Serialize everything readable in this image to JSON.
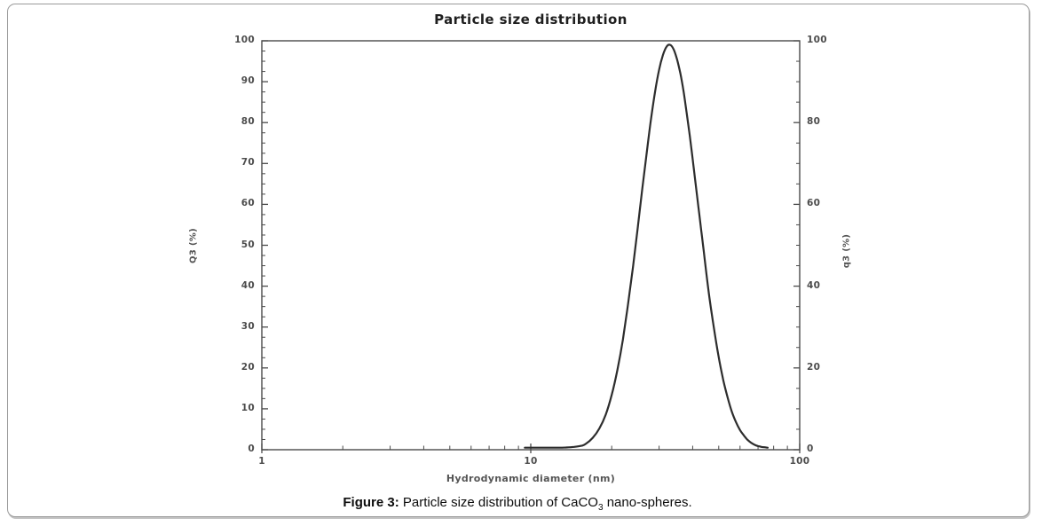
{
  "figure": {
    "caption": {
      "label": "Figure 3:",
      "body": " Particle size distribution of CaCO",
      "subscript": "3",
      "tail": " nano-spheres."
    }
  },
  "chart_data": {
    "type": "line",
    "title": "Particle size distribution",
    "xlabel": "Hydrodynamic diameter (nm)",
    "ylabel_left": "Q3 (%)",
    "ylabel_right": "q3 (%)",
    "x_scale": "log",
    "xlim": [
      1,
      100
    ],
    "ylim_left": [
      0,
      100
    ],
    "ylim_right": [
      0,
      100
    ],
    "x_major_ticks": [
      1,
      10,
      100
    ],
    "x_minor_ticks": [
      2,
      3,
      4,
      5,
      6,
      7,
      8,
      9,
      20,
      30,
      40,
      50,
      60,
      70,
      80,
      90
    ],
    "y_left_major_ticks": [
      0,
      10,
      20,
      30,
      40,
      50,
      60,
      70,
      80,
      90,
      100
    ],
    "y_left_minor_step": 2.5,
    "y_right_major_ticks": [
      0,
      20,
      40,
      60,
      80,
      100
    ],
    "y_right_minor_step": 5,
    "grid": false,
    "legend": "none",
    "axis_color": "#4a4a4a",
    "curve_color": "#2d2d2d",
    "series": [
      {
        "name": "q3 density curve",
        "peak_nm": 33,
        "peak_percent": 99,
        "points": [
          [
            9.5,
            0.5
          ],
          [
            10.5,
            0.5
          ],
          [
            11.5,
            0.5
          ],
          [
            12.5,
            0.5
          ],
          [
            13.5,
            0.55
          ],
          [
            14.5,
            0.7
          ],
          [
            15.5,
            1.0
          ],
          [
            16,
            1.4
          ],
          [
            17,
            2.9
          ],
          [
            18,
            5.2
          ],
          [
            19,
            8.6
          ],
          [
            20,
            13.4
          ],
          [
            21,
            19.5
          ],
          [
            22,
            26.9
          ],
          [
            23,
            35.6
          ],
          [
            24,
            44.7
          ],
          [
            25,
            54.4
          ],
          [
            26,
            63.9
          ],
          [
            27,
            72.7
          ],
          [
            28,
            80.9
          ],
          [
            29,
            87.6
          ],
          [
            30,
            92.9
          ],
          [
            31,
            96.5
          ],
          [
            32,
            98.6
          ],
          [
            33,
            99.0
          ],
          [
            34,
            97.9
          ],
          [
            35,
            95.4
          ],
          [
            36,
            92.0
          ],
          [
            37,
            87.6
          ],
          [
            38,
            82.3
          ],
          [
            39,
            76.9
          ],
          [
            40,
            71.1
          ],
          [
            41,
            65.1
          ],
          [
            42,
            59.5
          ],
          [
            43,
            53.9
          ],
          [
            44,
            48.4
          ],
          [
            46,
            38.0
          ],
          [
            48,
            29.7
          ],
          [
            50,
            22.6
          ],
          [
            52,
            17.0
          ],
          [
            54,
            12.7
          ],
          [
            56,
            9.2
          ],
          [
            58,
            6.7
          ],
          [
            60,
            4.8
          ],
          [
            62,
            3.5
          ],
          [
            64,
            2.4
          ],
          [
            66,
            1.7
          ],
          [
            68,
            1.2
          ],
          [
            70,
            0.9
          ],
          [
            72,
            0.7
          ],
          [
            74,
            0.6
          ],
          [
            76,
            0.5
          ]
        ]
      }
    ]
  },
  "colors": {
    "background": "#ffffff",
    "frame_border": "#9b9b9b",
    "title_text": "#1f1f1f",
    "tick_label": "#4c4c4c",
    "axis_label": "#555555",
    "caption_text": "#0d0d0d"
  }
}
